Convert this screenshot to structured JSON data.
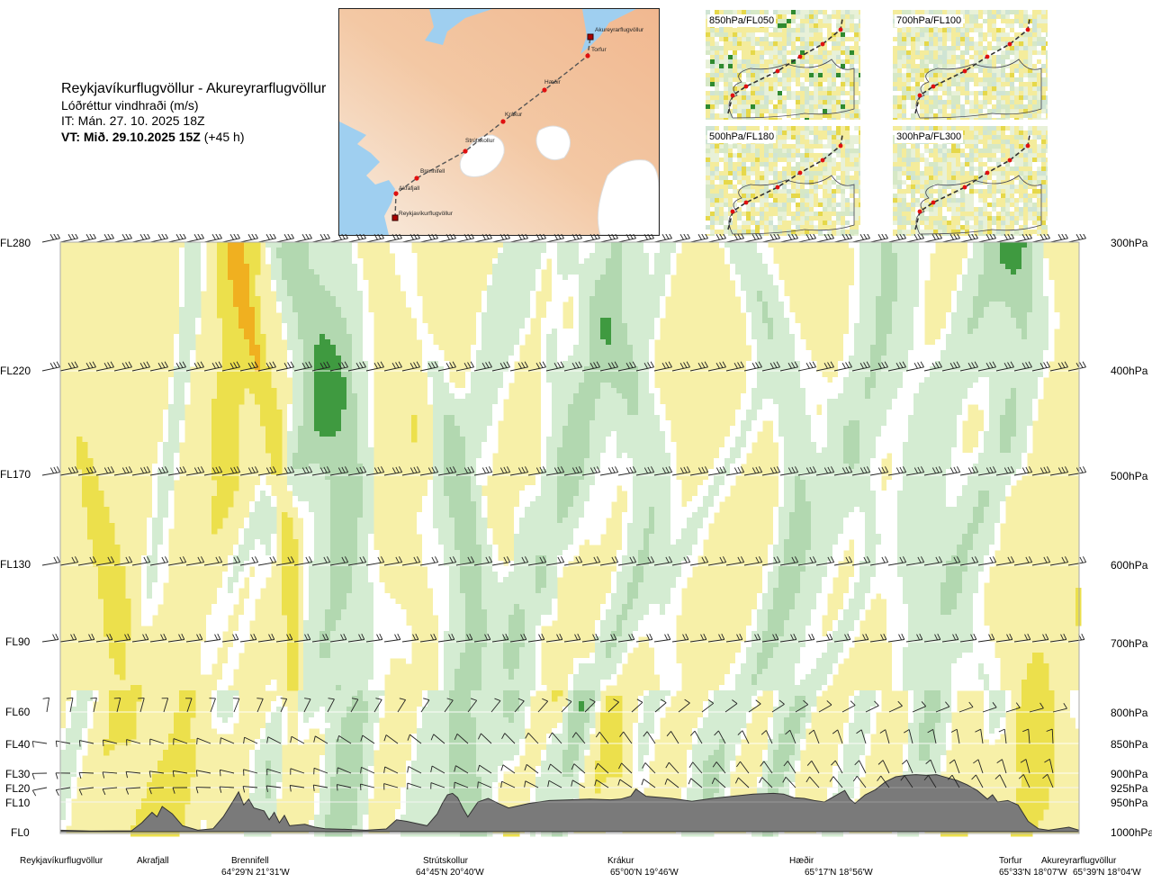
{
  "header": {
    "title": "Reykjavíkurflugvöllur - Akureyrarflugvöllur",
    "subtitle": "Lóðréttur vindhraði (m/s)",
    "issue_time": "IT: Mán. 27. 10. 2025 18Z",
    "valid_time_bold": "VT: Mið. 29.10.2025 15Z",
    "valid_time_offset": " (+45 h)"
  },
  "map": {
    "stations": [
      "Akureyrarflugvöllur",
      "Torfur",
      "Hæðir",
      "Krákur",
      "Strútskollur",
      "Brennifell",
      "Akrafjall",
      "Reykjavíkurflugvöllur"
    ],
    "colors": {
      "sea": "#9fcff0",
      "land_low": "#f6e6d6",
      "land_high": "#f0b088",
      "ice": "#ffffff",
      "route": "#555555",
      "point": "#e01010"
    }
  },
  "thumbnails": [
    {
      "label": "850hPa/FL050"
    },
    {
      "label": "700hPa/FL100"
    },
    {
      "label": "500hPa/FL180"
    },
    {
      "label": "300hPa/FL300"
    }
  ],
  "levels_left": [
    "FL280",
    "FL220",
    "FL170",
    "FL130",
    "FL90",
    "FL60",
    "FL40",
    "FL30",
    "FL20",
    "FL10",
    "FL0"
  ],
  "levels_right": [
    "300hPa",
    "400hPa",
    "500hPa",
    "600hPa",
    "700hPa",
    "800hPa",
    "850hPa",
    "900hPa",
    "925hPa",
    "950hPa",
    "1000hPa"
  ],
  "locations": [
    {
      "name": "Reykjavíkurflugvöllur",
      "coord": ""
    },
    {
      "name": "Akrafjall",
      "coord": ""
    },
    {
      "name": "Brennifell",
      "coord": "64°29'N 21°31'W"
    },
    {
      "name": "Strútskollur",
      "coord": "64°45'N 20°40'W"
    },
    {
      "name": "Krákur",
      "coord": "65°00'N 19°46'W"
    },
    {
      "name": "Hæðir",
      "coord": "65°17'N 18°56'W"
    },
    {
      "name": "Torfur",
      "coord": "65°33'N 18°07'W"
    },
    {
      "name": "Akureyrarflugvöllur",
      "coord": "65°39'N 18°04'W"
    }
  ],
  "chart_data": {
    "type": "heatmap",
    "title": "Reykjavíkurflugvöllur - Akureyrarflugvöllur",
    "variable": "Lóðréttur vindhraði (m/s)",
    "y_levels_fl": [
      280,
      220,
      170,
      130,
      90,
      60,
      40,
      30,
      20,
      10,
      0
    ],
    "y_levels_hpa": [
      300,
      400,
      500,
      600,
      700,
      800,
      850,
      900,
      925,
      950,
      1000
    ],
    "x_locations": [
      "Reykjavíkurflugvöllur",
      "Akrafjall",
      "Brennifell",
      "Strútskollur",
      "Krákur",
      "Hæðir",
      "Torfur",
      "Akureyrarflugvöllur"
    ],
    "x_range": [
      0,
      1
    ],
    "colors": {
      "up_weak": "#f7f0a8",
      "up_mod": "#ece04c",
      "up_strong": "#f0b020",
      "down_weak": "#d4ecd2",
      "down_mod": "#b2d8b0",
      "down_strong": "#3f9a40",
      "neutral": "#ffffff",
      "terrain": "#7a7a7a",
      "barb": "#222222",
      "frame": "#999999"
    },
    "terrain_profile": [
      [
        0,
        0.5
      ],
      [
        0.03,
        0.2
      ],
      [
        0.07,
        0.3
      ],
      [
        0.08,
        3.0
      ],
      [
        0.09,
        6.5
      ],
      [
        0.095,
        5.0
      ],
      [
        0.1,
        8.5
      ],
      [
        0.11,
        6.0
      ],
      [
        0.12,
        2.0
      ],
      [
        0.135,
        0.5
      ],
      [
        0.15,
        1.0
      ],
      [
        0.16,
        5.0
      ],
      [
        0.17,
        11.0
      ],
      [
        0.175,
        17.0
      ],
      [
        0.18,
        9.0
      ],
      [
        0.185,
        12.0
      ],
      [
        0.19,
        8.0
      ],
      [
        0.2,
        7.0
      ],
      [
        0.205,
        4.0
      ],
      [
        0.21,
        6.5
      ],
      [
        0.215,
        3.0
      ],
      [
        0.22,
        5.5
      ],
      [
        0.225,
        2.0
      ],
      [
        0.24,
        2.5
      ],
      [
        0.25,
        1.5
      ],
      [
        0.26,
        1.0
      ],
      [
        0.28,
        0.8
      ],
      [
        0.3,
        0.5
      ],
      [
        0.32,
        0.9
      ],
      [
        0.33,
        4.0
      ],
      [
        0.34,
        3.5
      ],
      [
        0.36,
        2.0
      ],
      [
        0.37,
        6.0
      ],
      [
        0.375,
        9.5
      ],
      [
        0.38,
        15.0
      ],
      [
        0.385,
        16.0
      ],
      [
        0.39,
        13.0
      ],
      [
        0.395,
        8.0
      ],
      [
        0.4,
        5.0
      ],
      [
        0.41,
        10.0
      ],
      [
        0.42,
        12.5
      ],
      [
        0.43,
        9.5
      ],
      [
        0.44,
        8.0
      ],
      [
        0.46,
        9.5
      ],
      [
        0.48,
        11.0
      ],
      [
        0.5,
        11.5
      ],
      [
        0.52,
        12.0
      ],
      [
        0.54,
        11.5
      ],
      [
        0.55,
        12.0
      ],
      [
        0.56,
        14.0
      ],
      [
        0.565,
        19.0
      ],
      [
        0.57,
        16.5
      ],
      [
        0.575,
        14.0
      ],
      [
        0.6,
        12.5
      ],
      [
        0.62,
        10.5
      ],
      [
        0.64,
        12.5
      ],
      [
        0.66,
        14.0
      ],
      [
        0.68,
        15.5
      ],
      [
        0.7,
        16.0
      ],
      [
        0.71,
        15.5
      ],
      [
        0.72,
        13.0
      ],
      [
        0.73,
        12.5
      ],
      [
        0.74,
        11.0
      ],
      [
        0.75,
        10.0
      ],
      [
        0.76,
        14.0
      ],
      [
        0.77,
        18.0
      ],
      [
        0.775,
        12.0
      ],
      [
        0.78,
        9.5
      ],
      [
        0.79,
        15.0
      ],
      [
        0.8,
        18.5
      ],
      [
        0.81,
        24.0
      ],
      [
        0.82,
        27.5
      ],
      [
        0.83,
        28.5
      ],
      [
        0.84,
        29.0
      ],
      [
        0.85,
        28.5
      ],
      [
        0.86,
        29.0
      ],
      [
        0.87,
        27.0
      ],
      [
        0.88,
        25.0
      ],
      [
        0.89,
        22.0
      ],
      [
        0.9,
        18.0
      ],
      [
        0.91,
        12.0
      ],
      [
        0.915,
        15.0
      ],
      [
        0.92,
        10.0
      ],
      [
        0.93,
        11.0
      ],
      [
        0.94,
        9.0
      ],
      [
        0.95,
        3.5
      ],
      [
        0.96,
        1.0
      ],
      [
        0.97,
        0.5
      ],
      [
        0.99,
        1.5
      ],
      [
        1.0,
        0.5
      ]
    ]
  }
}
